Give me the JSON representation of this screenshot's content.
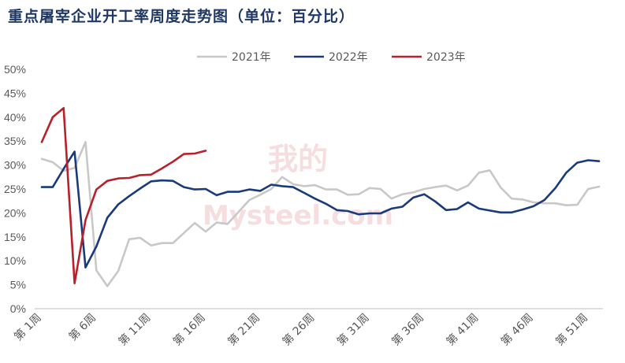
{
  "chart_data": {
    "type": "line",
    "title": "重点屠宰企业开工率周度走势图（单位：百分比）",
    "watermark": [
      "我的",
      "Mysteel.com"
    ],
    "xlabel": "",
    "ylabel": "",
    "ylim": [
      0,
      50
    ],
    "yticks": [
      "0%",
      "5%",
      "10%",
      "15%",
      "20%",
      "25%",
      "30%",
      "35%",
      "40%",
      "45%",
      "50%"
    ],
    "xlim": [
      1,
      53
    ],
    "xtick_weeks": [
      1,
      6,
      11,
      16,
      21,
      26,
      31,
      36,
      41,
      46,
      51
    ],
    "xtick_labels": [
      "第 1周",
      "第 6周",
      "第 11周",
      "第 16周",
      "第 21周",
      "第 26周",
      "第 31周",
      "第 36周",
      "第 41周",
      "第 46周",
      "第 51周"
    ],
    "grid": false,
    "legend_position": "top-center",
    "series": [
      {
        "name": "2021年",
        "color": "#c8c8c8",
        "values": [
          31.3,
          30.6,
          28.8,
          29.4,
          34.8,
          8.0,
          4.7,
          7.9,
          14.5,
          14.8,
          13.2,
          13.7,
          13.7,
          15.8,
          17.9,
          16.1,
          18.0,
          17.7,
          20.2,
          22.7,
          23.8,
          25.0,
          27.5,
          26.0,
          25.6,
          25.8,
          24.9,
          24.9,
          23.8,
          23.9,
          25.2,
          25.0,
          23.0,
          23.9,
          24.3,
          25.0,
          25.4,
          25.7,
          24.7,
          25.7,
          28.4,
          28.9,
          25.3,
          23.0,
          22.8,
          22.2,
          22.0,
          22.0,
          21.6,
          21.7,
          25.0,
          25.5
        ]
      },
      {
        "name": "2022年",
        "color": "#1a3a7a",
        "values": [
          25.4,
          25.4,
          29.2,
          32.8,
          8.6,
          13.0,
          19.0,
          21.8,
          23.5,
          25.1,
          26.6,
          26.8,
          26.7,
          25.4,
          24.9,
          25.0,
          23.7,
          24.4,
          24.4,
          24.9,
          24.6,
          25.9,
          25.6,
          25.4,
          24.2,
          23.0,
          21.9,
          20.6,
          20.4,
          19.7,
          19.9,
          19.9,
          20.9,
          21.3,
          23.2,
          23.9,
          22.4,
          20.6,
          20.8,
          22.2,
          20.9,
          20.5,
          20.1,
          20.1,
          20.7,
          21.4,
          22.7,
          25.2,
          28.4,
          30.5,
          31.0,
          30.8
        ]
      },
      {
        "name": "2023年",
        "color": "#b8202a",
        "values": [
          34.8,
          40.0,
          41.9,
          5.3,
          18.5,
          24.9,
          26.7,
          27.2,
          27.3,
          27.9,
          28.0,
          29.3,
          30.7,
          32.3,
          32.4,
          33.0
        ]
      }
    ]
  }
}
